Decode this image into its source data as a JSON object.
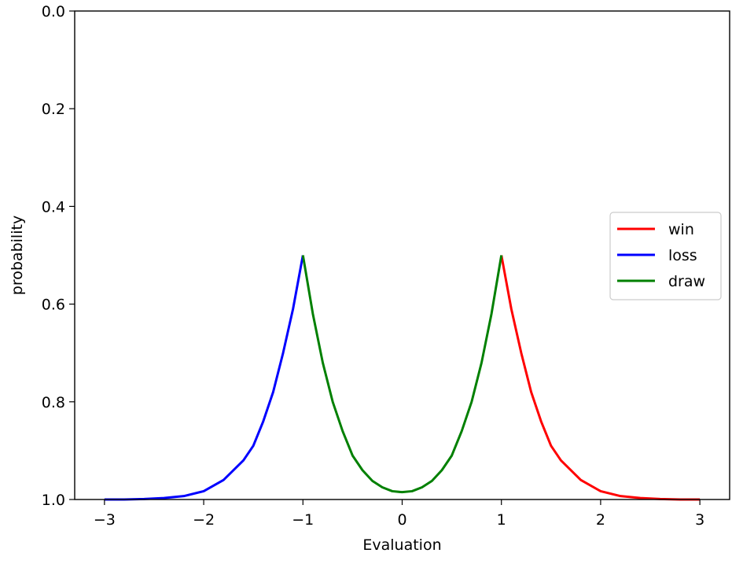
{
  "chart_data": {
    "type": "line",
    "title": "",
    "xlabel": "Evaluation",
    "ylabel": "probability",
    "xlim": [
      -3.3,
      3.3
    ],
    "ylim": [
      0.0,
      1.0
    ],
    "y_inverted": true,
    "grid": false,
    "legend_position": "right",
    "x_ticks": [
      {
        "value": -3,
        "label": "−3"
      },
      {
        "value": -2,
        "label": "−2"
      },
      {
        "value": -1,
        "label": "−1"
      },
      {
        "value": 0,
        "label": "0"
      },
      {
        "value": 1,
        "label": "1"
      },
      {
        "value": 2,
        "label": "2"
      },
      {
        "value": 3,
        "label": "3"
      }
    ],
    "y_ticks": [
      {
        "value": 0.0,
        "label": "0.0"
      },
      {
        "value": 0.2,
        "label": "0.2"
      },
      {
        "value": 0.4,
        "label": "0.4"
      },
      {
        "value": 0.6,
        "label": "0.6"
      },
      {
        "value": 0.8,
        "label": "0.8"
      },
      {
        "value": 1.0,
        "label": "1.0"
      }
    ],
    "series": [
      {
        "name": "win",
        "color": "#ff0000",
        "x": [
          1.0,
          1.1,
          1.2,
          1.3,
          1.4,
          1.5,
          1.6,
          1.8,
          2.0,
          2.2,
          2.4,
          2.6,
          2.8,
          3.0
        ],
        "y": [
          0.5,
          0.61,
          0.7,
          0.78,
          0.84,
          0.89,
          0.92,
          0.96,
          0.983,
          0.993,
          0.997,
          0.999,
          1.0,
          1.0
        ]
      },
      {
        "name": "loss",
        "color": "#0000ff",
        "x": [
          -3.0,
          -2.8,
          -2.6,
          -2.4,
          -2.2,
          -2.0,
          -1.8,
          -1.6,
          -1.5,
          -1.4,
          -1.3,
          -1.2,
          -1.1,
          -1.0
        ],
        "y": [
          1.0,
          1.0,
          0.999,
          0.997,
          0.993,
          0.983,
          0.96,
          0.92,
          0.89,
          0.84,
          0.78,
          0.7,
          0.61,
          0.5
        ]
      },
      {
        "name": "draw",
        "color": "#008000",
        "x": [
          -1.0,
          -0.9,
          -0.8,
          -0.7,
          -0.6,
          -0.5,
          -0.4,
          -0.3,
          -0.2,
          -0.1,
          0.0,
          0.1,
          0.2,
          0.3,
          0.4,
          0.5,
          0.6,
          0.7,
          0.8,
          0.9,
          1.0
        ],
        "y": [
          0.5,
          0.62,
          0.72,
          0.8,
          0.86,
          0.91,
          0.94,
          0.962,
          0.975,
          0.983,
          0.985,
          0.983,
          0.975,
          0.962,
          0.94,
          0.91,
          0.86,
          0.8,
          0.72,
          0.62,
          0.5
        ]
      }
    ]
  }
}
